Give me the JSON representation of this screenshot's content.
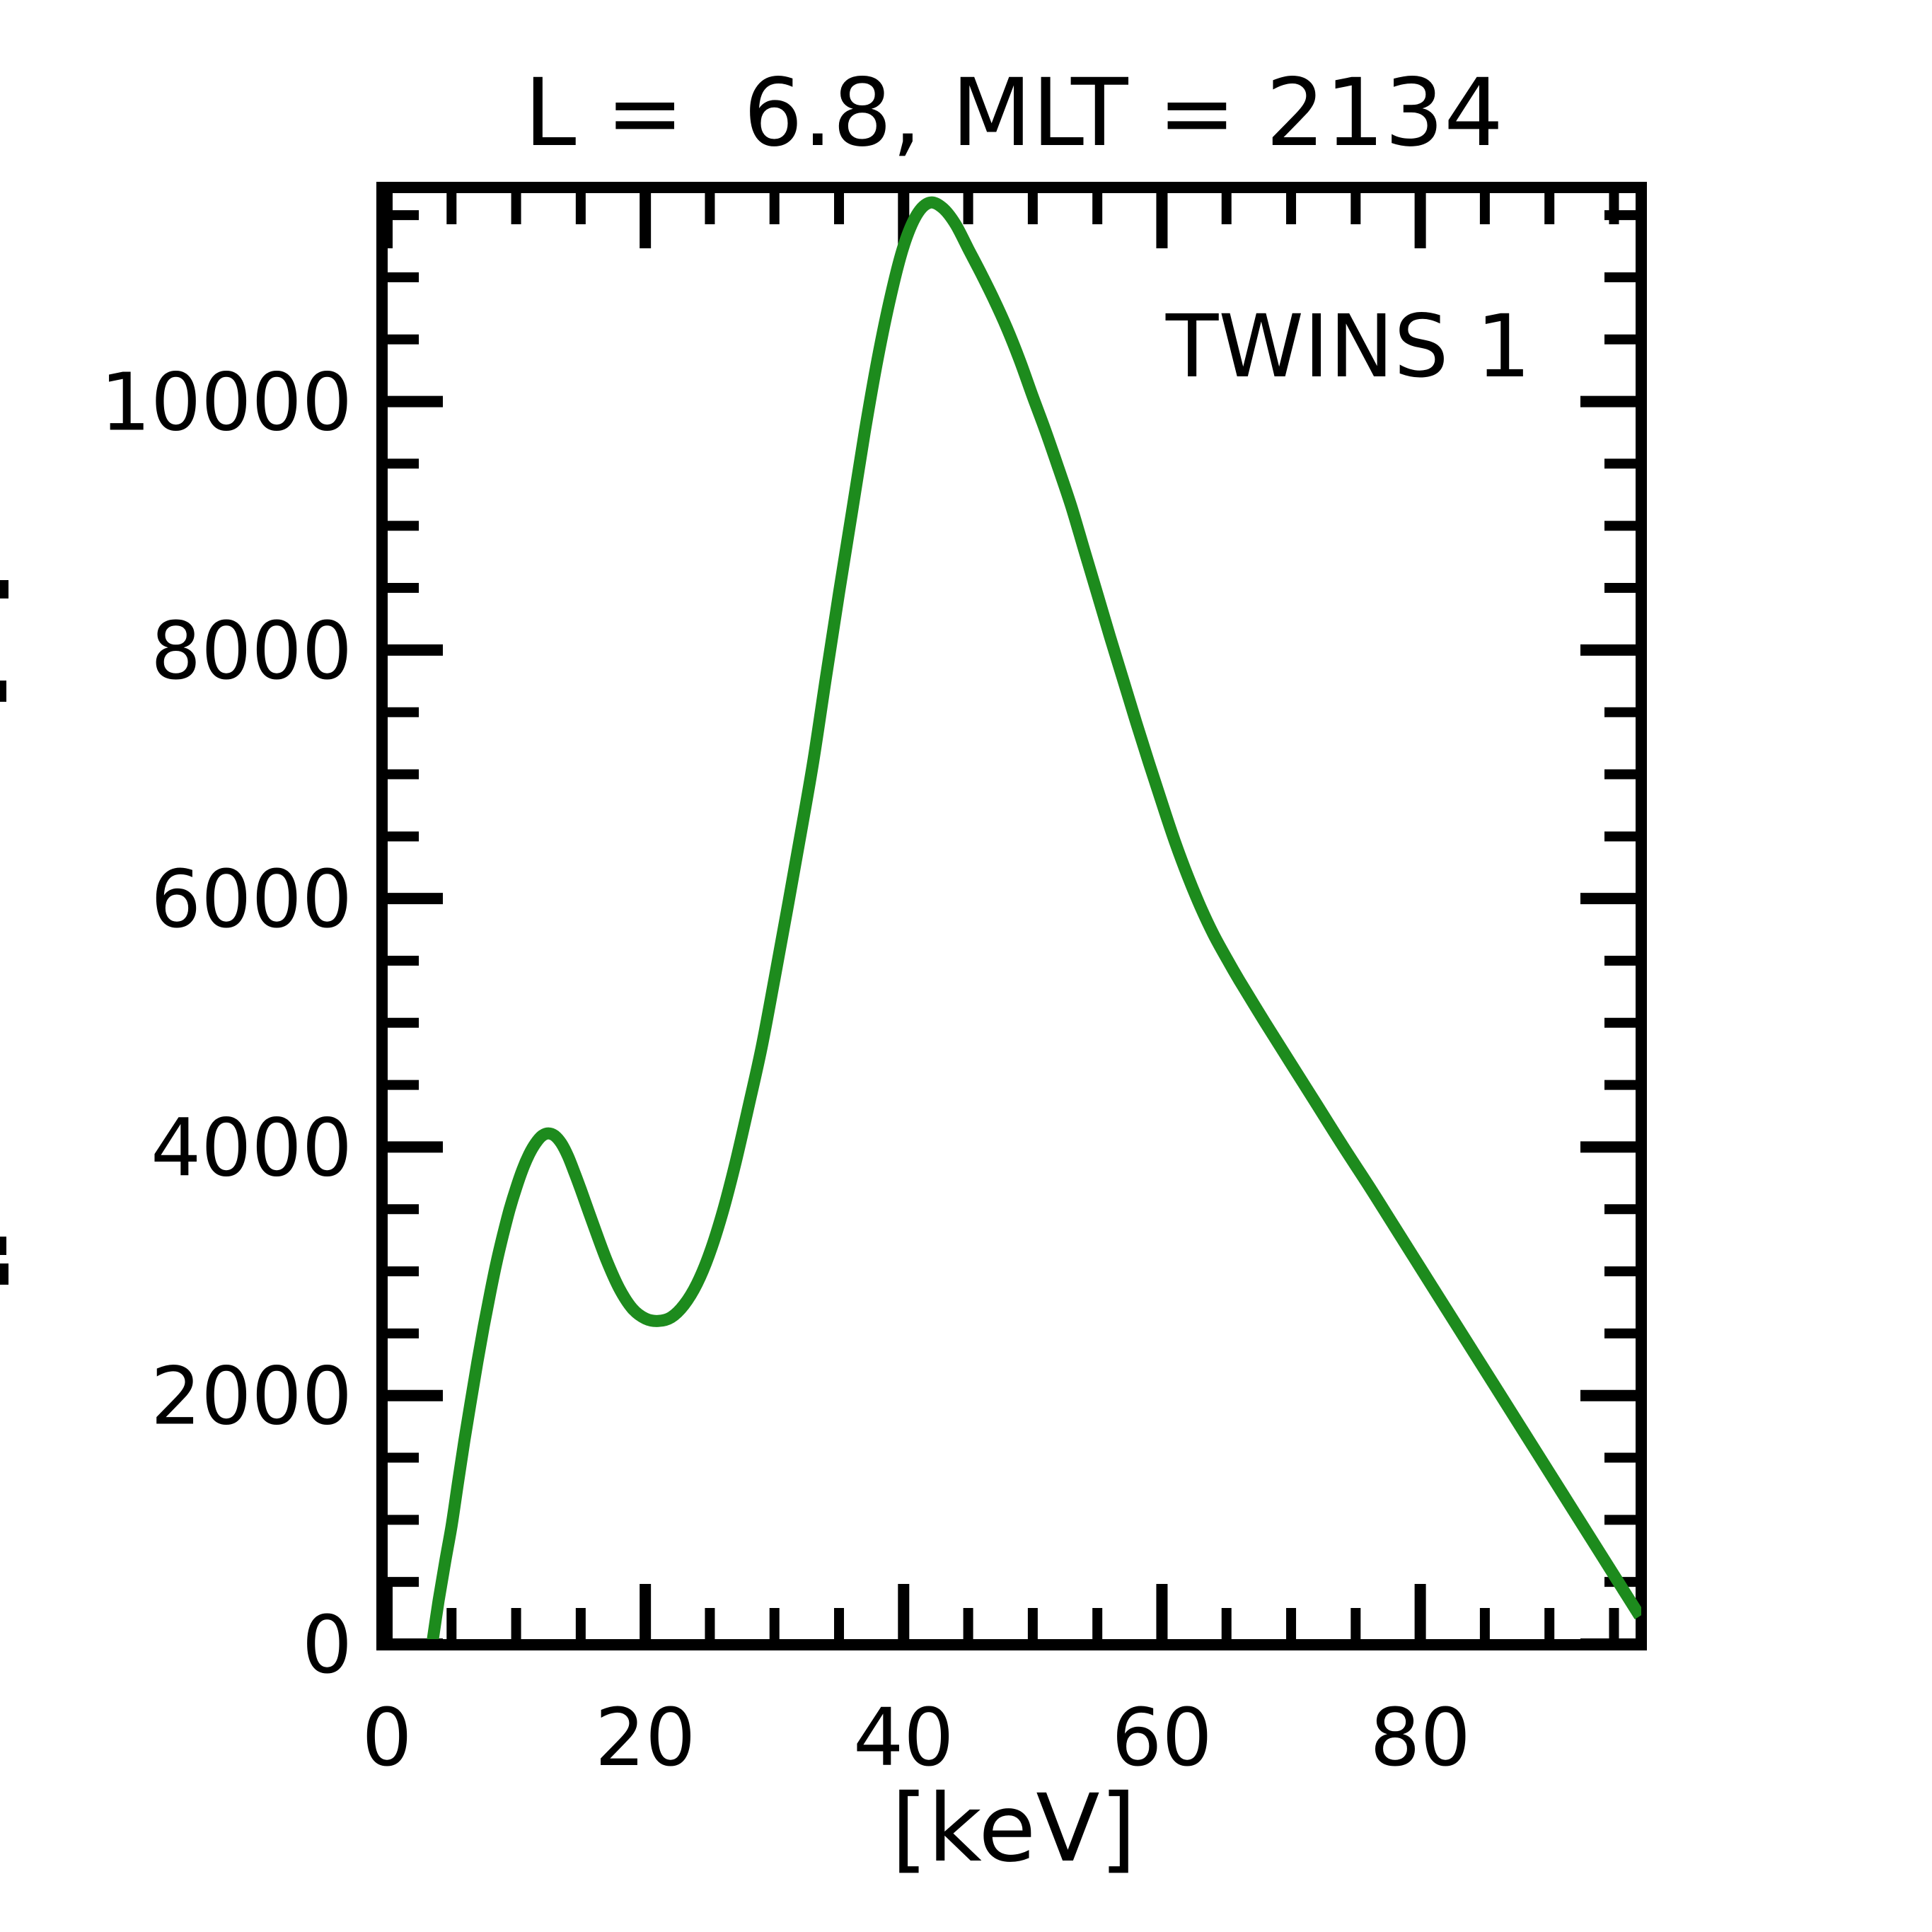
{
  "figure": {
    "title": "L =  6.8, MLT = 2134",
    "x_axis_label": "[keV]",
    "legend": {
      "label": "TWINS 1"
    }
  },
  "colors": {
    "background": "#ffffff",
    "axis": "#000000",
    "series_green": "#1d8b1d"
  },
  "chart_data": {
    "type": "line",
    "title": "L =  6.8, MLT = 2134",
    "xlabel": "[keV]",
    "ylabel": "",
    "xlim": [
      0,
      97
    ],
    "ylim": [
      0,
      11700
    ],
    "x_major_ticks": [
      0,
      20,
      40,
      60,
      80
    ],
    "x_minor_tick_step": 5,
    "y_major_ticks": [
      0,
      2000,
      4000,
      6000,
      8000,
      10000
    ],
    "y_minor_tick_step": 500,
    "grid": false,
    "legend_position": "upper-right-inside",
    "series": [
      {
        "name": "TWINS 1",
        "color": "#1d8b1d",
        "x": [
          3.5,
          4,
          4.5,
          5,
          5.5,
          6,
          6.5,
          7,
          7.5,
          8,
          8.5,
          9,
          9.5,
          10,
          10.5,
          11,
          11.5,
          12,
          12.5,
          13,
          13.5,
          14,
          14.5,
          15,
          16,
          17,
          18,
          19,
          20,
          21,
          22,
          23,
          24,
          25,
          26,
          27,
          28,
          29,
          30,
          31,
          32,
          33,
          34,
          35,
          36,
          37,
          38,
          39,
          40,
          41,
          42,
          43,
          44,
          45,
          46,
          47,
          48,
          49,
          50,
          51,
          52,
          53,
          54,
          55,
          56,
          57,
          58,
          59,
          60,
          61,
          62,
          63,
          64,
          65,
          66,
          68,
          70,
          72,
          74,
          76,
          78,
          80,
          82,
          84,
          86,
          88,
          90,
          92,
          94,
          96,
          97
        ],
        "y": [
          0,
          350,
          660,
          950,
          1300,
          1640,
          1960,
          2270,
          2560,
          2830,
          3080,
          3300,
          3500,
          3670,
          3820,
          3940,
          4030,
          4090,
          4110,
          4090,
          4030,
          3930,
          3800,
          3660,
          3370,
          3090,
          2860,
          2700,
          2620,
          2600,
          2630,
          2730,
          2900,
          3150,
          3480,
          3880,
          4330,
          4800,
          5350,
          5920,
          6500,
          7100,
          7790,
          8460,
          9110,
          9760,
          10350,
          10850,
          11250,
          11500,
          11600,
          11560,
          11430,
          11230,
          11030,
          10820,
          10590,
          10330,
          10040,
          9760,
          9460,
          9150,
          8800,
          8450,
          8100,
          7760,
          7420,
          7090,
          6770,
          6460,
          6180,
          5930,
          5710,
          5520,
          5340,
          5000,
          4670,
          4340,
          4010,
          3690,
          3360,
          3030,
          2700,
          2370,
          2040,
          1710,
          1380,
          1050,
          720,
          390,
          225
        ]
      }
    ]
  },
  "misc": {
    "clipped_y_axis_label_fragments": [
      {
        "x": 0,
        "y": 820,
        "w": 12,
        "h": 26
      },
      {
        "x": 0,
        "y": 962,
        "w": 9,
        "h": 30
      },
      {
        "x": 0,
        "y": 1748,
        "w": 9,
        "h": 26
      },
      {
        "x": 0,
        "y": 1786,
        "w": 12,
        "h": 30
      }
    ]
  }
}
